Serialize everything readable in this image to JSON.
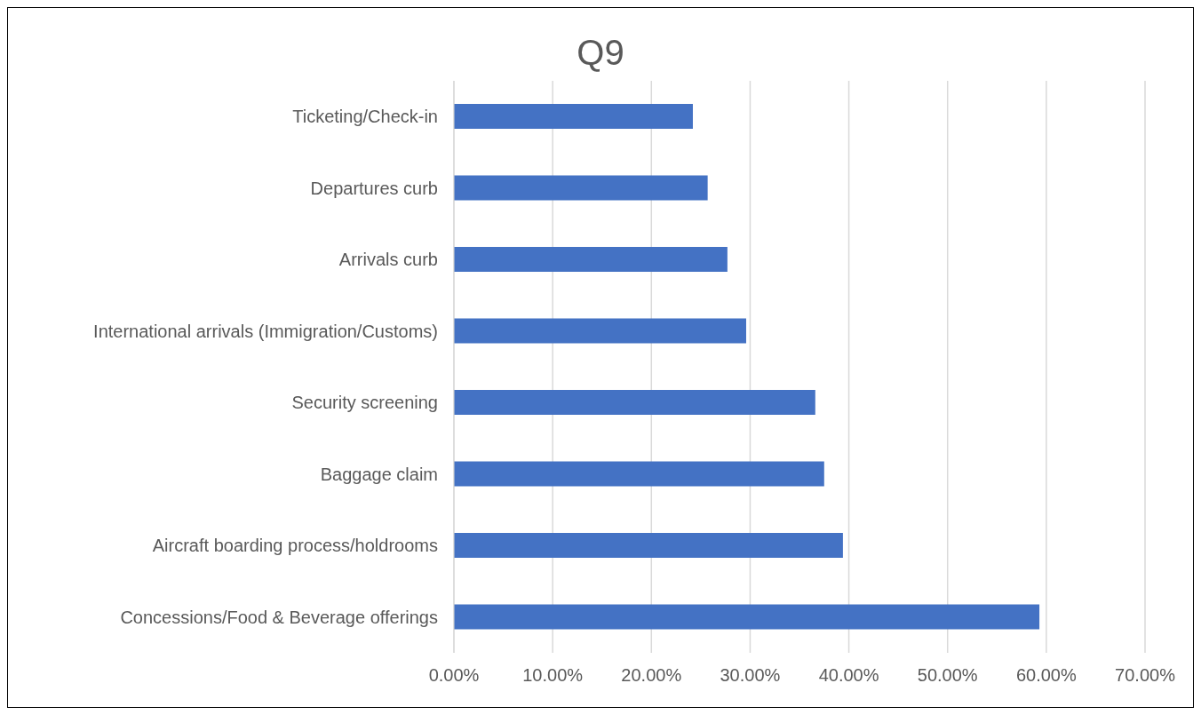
{
  "chart_data": {
    "type": "bar",
    "orientation": "horizontal",
    "title": "Q9",
    "categories": [
      "Ticketing/Check-in",
      "Departures curb",
      "Arrivals curb",
      "International arrivals (Immigration/Customs)",
      "Security screening",
      "Baggage claim",
      "Aircraft boarding process/holdrooms",
      "Concessions/Food & Beverage offerings"
    ],
    "values": [
      24.2,
      25.7,
      27.7,
      29.6,
      36.6,
      37.5,
      39.4,
      59.3
    ],
    "color": "#4472c4",
    "xlim": [
      0,
      70
    ],
    "xticks": [
      {
        "value": 0,
        "label": "0.00%"
      },
      {
        "value": 10,
        "label": "10.00%"
      },
      {
        "value": 20,
        "label": "20.00%"
      },
      {
        "value": 30,
        "label": "30.00%"
      },
      {
        "value": 40,
        "label": "40.00%"
      },
      {
        "value": 50,
        "label": "50.00%"
      },
      {
        "value": 60,
        "label": "60.00%"
      },
      {
        "value": 70,
        "label": "70.00%"
      }
    ],
    "grid": "x",
    "legend": false
  }
}
